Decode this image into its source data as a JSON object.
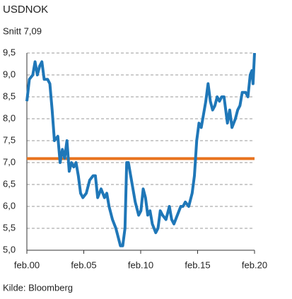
{
  "chart_data": {
    "type": "line",
    "title": "USDNOK",
    "subtitle": "Snitt 7,09",
    "note": "Kilde: Bloomberg",
    "reference": {
      "value": 7.09,
      "color": "#e8731e"
    },
    "xlim": [
      2000.08,
      2020.08
    ],
    "xticks": [
      {
        "value": 2000.08,
        "label": "feb.00"
      },
      {
        "value": 2005.08,
        "label": "feb.05"
      },
      {
        "value": 2010.08,
        "label": "feb.10"
      },
      {
        "value": 2015.08,
        "label": "feb.15"
      },
      {
        "value": 2020.08,
        "label": "feb.20"
      }
    ],
    "ylim": [
      5,
      9.5
    ],
    "yticks": [
      {
        "value": 5,
        "label": "5,0"
      },
      {
        "value": 5.5,
        "label": "5,5"
      },
      {
        "value": 6,
        "label": "6,0"
      },
      {
        "value": 6.5,
        "label": "6,5"
      },
      {
        "value": 7,
        "label": "7,0"
      },
      {
        "value": 7.5,
        "label": "7,5"
      },
      {
        "value": 8,
        "label": "8,0"
      },
      {
        "value": 8.5,
        "label": "8,5"
      },
      {
        "value": 9,
        "label": "9,0"
      },
      {
        "value": 9.5,
        "label": "9,5"
      }
    ],
    "grid": true,
    "x": [
      2000.08,
      2000.3,
      2000.6,
      2000.8,
      2001.0,
      2001.2,
      2001.4,
      2001.6,
      2001.9,
      2002.1,
      2002.3,
      2002.5,
      2002.8,
      2003.0,
      2003.2,
      2003.4,
      2003.6,
      2003.8,
      2004.0,
      2004.2,
      2004.4,
      2004.6,
      2004.8,
      2005.0,
      2005.3,
      2005.6,
      2005.9,
      2006.1,
      2006.3,
      2006.6,
      2006.9,
      2007.1,
      2007.3,
      2007.6,
      2007.9,
      2008.1,
      2008.3,
      2008.5,
      2008.7,
      2008.85,
      2009.0,
      2009.2,
      2009.4,
      2009.6,
      2009.9,
      2010.1,
      2010.3,
      2010.5,
      2010.7,
      2010.9,
      2011.1,
      2011.4,
      2011.6,
      2011.8,
      2012.0,
      2012.3,
      2012.6,
      2012.8,
      2013.0,
      2013.3,
      2013.6,
      2013.8,
      2014.0,
      2014.3,
      2014.6,
      2014.8,
      2015.0,
      2015.2,
      2015.4,
      2015.6,
      2015.8,
      2016.0,
      2016.2,
      2016.4,
      2016.6,
      2016.8,
      2017.0,
      2017.2,
      2017.4,
      2017.7,
      2017.9,
      2018.1,
      2018.4,
      2018.6,
      2018.8,
      2019.0,
      2019.3,
      2019.5,
      2019.7,
      2019.85,
      2019.95,
      2020.08
    ],
    "series": [
      {
        "name": "USDNOK",
        "color": "#1f77b8",
        "values": [
          8.4,
          8.9,
          9.0,
          9.3,
          9.0,
          9.2,
          9.3,
          8.9,
          8.9,
          8.8,
          8.2,
          7.5,
          7.6,
          7.0,
          7.3,
          7.1,
          7.5,
          6.8,
          7.0,
          6.9,
          7.0,
          6.7,
          6.3,
          6.2,
          6.3,
          6.6,
          6.7,
          6.7,
          6.2,
          6.4,
          6.2,
          6.3,
          6.0,
          5.7,
          5.5,
          5.3,
          5.1,
          5.1,
          5.5,
          7.0,
          7.0,
          6.7,
          6.4,
          6.1,
          5.8,
          5.9,
          6.4,
          6.2,
          5.8,
          5.9,
          5.6,
          5.4,
          5.5,
          5.9,
          5.8,
          5.7,
          6.0,
          5.7,
          5.6,
          5.8,
          6.0,
          6.0,
          6.1,
          6.0,
          6.3,
          6.7,
          7.5,
          7.9,
          7.8,
          8.1,
          8.4,
          8.8,
          8.4,
          8.2,
          8.3,
          8.5,
          8.4,
          8.5,
          8.5,
          7.9,
          8.2,
          7.8,
          8.0,
          8.2,
          8.3,
          8.6,
          8.6,
          8.5,
          9.0,
          9.1,
          8.8,
          9.5
        ]
      }
    ]
  }
}
